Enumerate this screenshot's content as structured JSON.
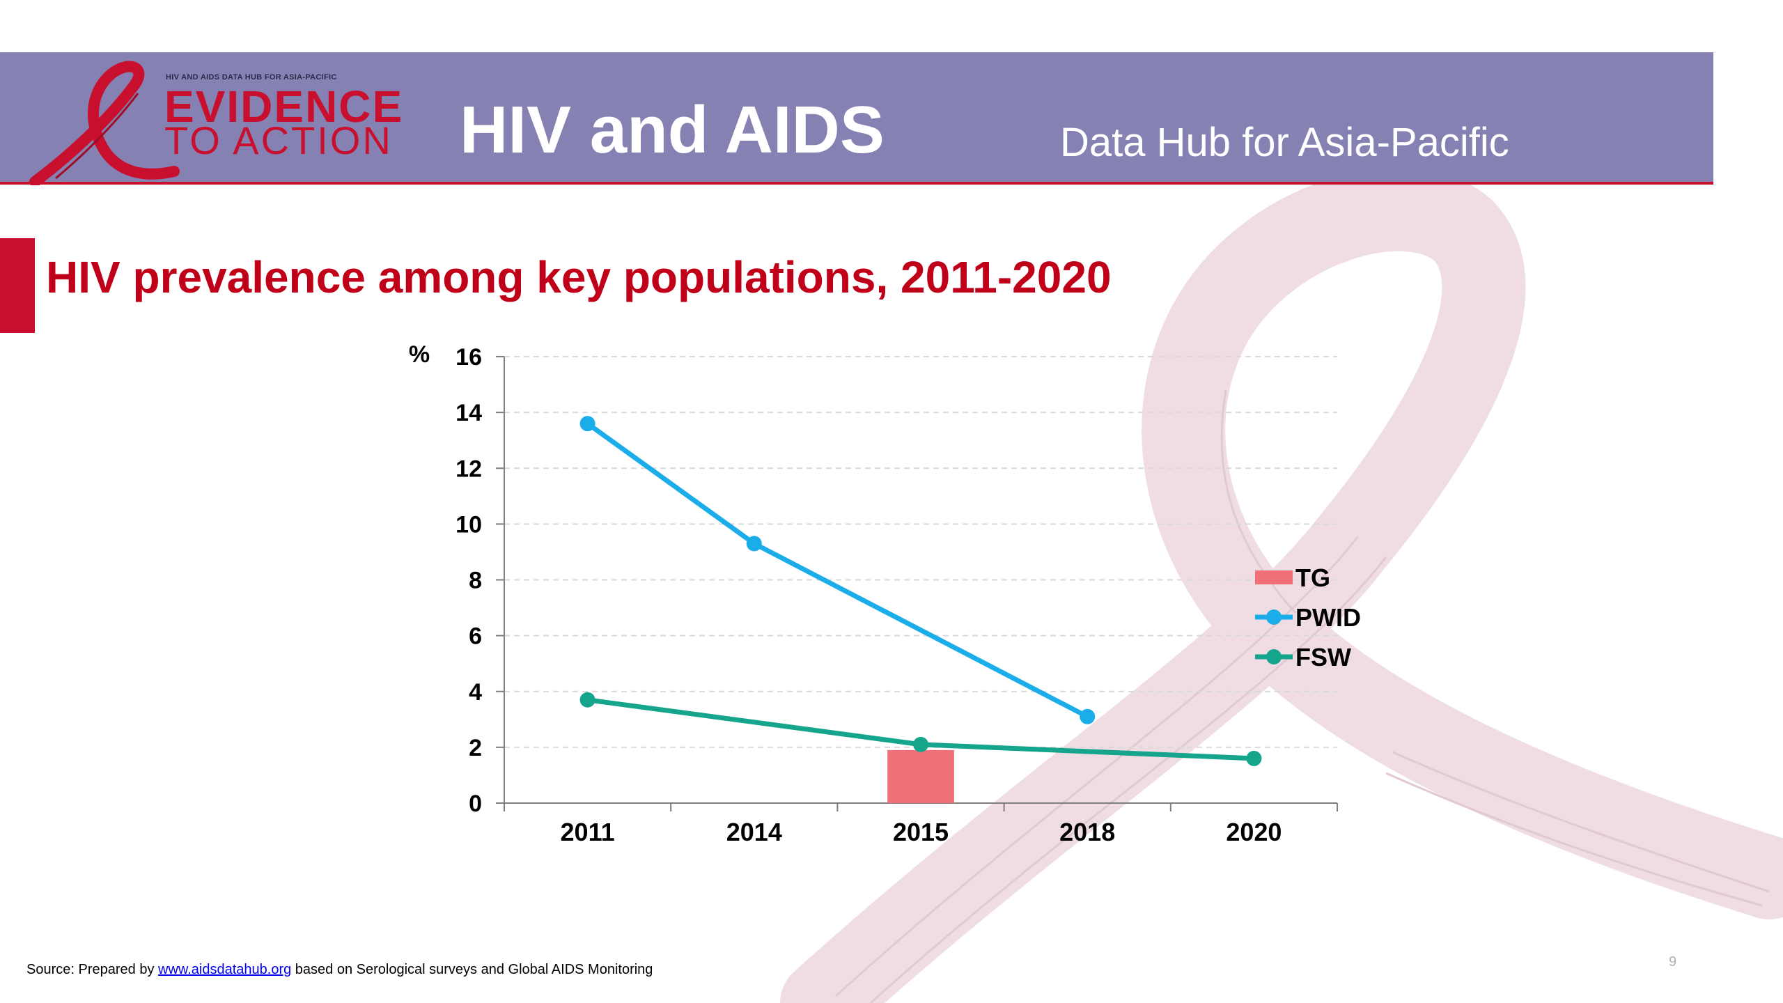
{
  "header": {
    "logo_small": "HIV AND AIDS DATA HUB FOR ASIA-PACIFIC",
    "logo_line1": "EVIDENCE",
    "logo_line2": "TO ACTION",
    "title": "HIV and AIDS",
    "subtitle": "Data Hub for Asia-Pacific"
  },
  "slide": {
    "title": "HIV prevalence among key populations, 2011-2020",
    "page_number": "9"
  },
  "footer": {
    "prefix": "Source: Prepared by ",
    "link_text": "www.aidsdatahub.org",
    "suffix": " based on Serological surveys and Global AIDS Monitoring"
  },
  "colors": {
    "header_band": "#8681b3",
    "brand_red": "#c8102e",
    "tg": "#f07078",
    "pwid": "#1aade9",
    "fsw": "#14a58c",
    "ribbon": "#efdde3"
  },
  "chart_data": {
    "type": "line",
    "ylabel": "%",
    "xlabel": "",
    "categories": [
      "2011",
      "2014",
      "2015",
      "2018",
      "2020"
    ],
    "ylim": [
      0,
      16
    ],
    "yticks": [
      0,
      2,
      4,
      6,
      8,
      10,
      12,
      14,
      16
    ],
    "grid": true,
    "legend_position": "right",
    "series": [
      {
        "name": "TG",
        "kind": "bar",
        "color": "#f07078",
        "values": [
          null,
          null,
          1.9,
          null,
          null
        ]
      },
      {
        "name": "PWID",
        "kind": "line",
        "color": "#1aade9",
        "values": [
          13.6,
          9.3,
          null,
          3.1,
          null
        ]
      },
      {
        "name": "FSW",
        "kind": "line",
        "color": "#14a58c",
        "values": [
          3.7,
          null,
          2.1,
          null,
          1.6
        ]
      }
    ]
  }
}
